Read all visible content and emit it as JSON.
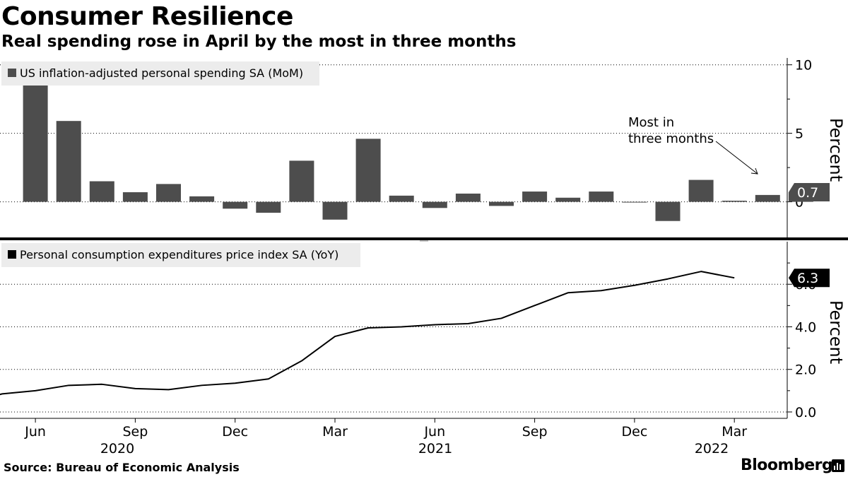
{
  "title": "Consumer Resilience",
  "subtitle": "Real spending rose in April by the most in three months",
  "source": "Source: Bureau of Economic Analysis",
  "brand": "Bloomberg",
  "colors": {
    "bars": "#4d4d4d",
    "line": "#000000",
    "legend_bg": "#ececec",
    "tag_bg": "#000000"
  },
  "chart_data": [
    {
      "type": "bar",
      "legend": "US inflation-adjusted personal spending SA (MoM)",
      "ylabel": "Percent",
      "ylim": [
        -2.6,
        10.5
      ],
      "yticks": [
        "10",
        "5",
        "0"
      ],
      "ytick_values": [
        10,
        5,
        0
      ],
      "annotation": "Most in three months",
      "annotation_lines": [
        "Most in",
        "three months"
      ],
      "last_value_label": "0.7",
      "x": [
        "2020-05",
        "2020-06",
        "2020-07",
        "2020-08",
        "2020-09",
        "2020-10",
        "2020-11",
        "2020-12",
        "2021-01",
        "2021-02",
        "2021-03",
        "2021-04",
        "2021-05",
        "2021-06",
        "2021-07",
        "2021-08",
        "2021-09",
        "2021-10",
        "2021-11",
        "2021-12",
        "2022-01",
        "2022-02",
        "2022-03",
        "2022-04"
      ],
      "values": [
        8.5,
        5.9,
        1.5,
        0.7,
        1.3,
        0.4,
        -0.5,
        -0.8,
        3.0,
        -1.3,
        4.6,
        0.45,
        -0.45,
        0.6,
        -0.3,
        0.75,
        0.3,
        0.75,
        -0.05,
        -1.4,
        1.6,
        0.08,
        0.5,
        0.7
      ]
    },
    {
      "type": "line",
      "legend": "Personal consumption expenditures price index SA (YoY)",
      "ylabel": "Percent",
      "ylim": [
        -0.3,
        8.0
      ],
      "yticks": [
        "6.0",
        "4.0",
        "2.0",
        "0.0"
      ],
      "ytick_values": [
        6,
        4,
        2,
        0
      ],
      "last_value_label": "6.3",
      "x": [
        "2020-04",
        "2020-05",
        "2020-06",
        "2020-07",
        "2020-08",
        "2020-09",
        "2020-10",
        "2020-11",
        "2020-12",
        "2021-01",
        "2021-02",
        "2021-03",
        "2021-04",
        "2021-05",
        "2021-06",
        "2021-07",
        "2021-08",
        "2021-09",
        "2021-10",
        "2021-11",
        "2021-12",
        "2022-01",
        "2022-02",
        "2022-03",
        "2022-04"
      ],
      "values": [
        0.4,
        0.85,
        1.0,
        1.25,
        1.3,
        1.1,
        1.05,
        1.25,
        1.35,
        1.55,
        2.4,
        3.55,
        3.95,
        4.0,
        4.1,
        4.15,
        4.4,
        5.0,
        5.6,
        5.7,
        5.95,
        6.25,
        6.6,
        6.3,
        null
      ]
    }
  ],
  "x_axis": {
    "month_labels": [
      "Jun",
      "Sep",
      "Dec",
      "Mar",
      "Jun",
      "Sep",
      "Dec",
      "Mar"
    ],
    "year_labels": [
      "2020",
      "2021",
      "2022"
    ]
  }
}
